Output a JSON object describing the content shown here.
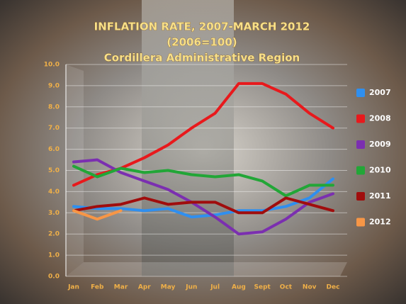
{
  "chart_data": {
    "type": "line",
    "title": "INFLATION RATE, 2007-MARCH 2012",
    "subtitle": [
      "(2006=100)",
      "Cordillera Administrative Region"
    ],
    "categories": [
      "Jan",
      "Feb",
      "Mar",
      "Apr",
      "May",
      "Jun",
      "Jul",
      "Aug",
      "Sept",
      "Oct",
      "Nov",
      "Dec"
    ],
    "series": [
      {
        "name": "2007",
        "color": "#2f8fef",
        "values": [
          3.3,
          3.2,
          3.2,
          3.1,
          3.2,
          2.8,
          2.9,
          3.1,
          3.1,
          3.3,
          3.7,
          4.6
        ]
      },
      {
        "name": "2008",
        "color": "#e8191c",
        "values": [
          4.3,
          4.8,
          5.1,
          5.6,
          6.2,
          7.0,
          7.7,
          9.1,
          9.1,
          8.6,
          7.7,
          7.0
        ]
      },
      {
        "name": "2009",
        "color": "#7b2fb0",
        "values": [
          5.4,
          5.5,
          4.9,
          4.5,
          4.1,
          3.5,
          2.8,
          2.0,
          2.1,
          2.7,
          3.5,
          3.9
        ]
      },
      {
        "name": "2010",
        "color": "#22a637",
        "values": [
          5.2,
          4.7,
          5.1,
          4.9,
          5.0,
          4.8,
          4.7,
          4.8,
          4.5,
          3.8,
          4.3,
          4.3
        ]
      },
      {
        "name": "2011",
        "color": "#a00d0d",
        "values": [
          3.1,
          3.3,
          3.4,
          3.7,
          3.4,
          3.5,
          3.5,
          3.0,
          3.0,
          3.7,
          3.4,
          3.1
        ]
      },
      {
        "name": "2012",
        "color": "#f79646",
        "values": [
          3.1,
          2.7,
          3.1,
          null,
          null,
          null,
          null,
          null,
          null,
          null,
          null,
          null
        ]
      }
    ],
    "ylim": [
      0,
      10
    ],
    "yticks": [
      {
        "value": 0,
        "label": "0.0"
      },
      {
        "value": 1,
        "label": "1.0"
      },
      {
        "value": 2,
        "label": "2.0"
      },
      {
        "value": 3,
        "label": "3.0"
      },
      {
        "value": 4,
        "label": "4.0"
      },
      {
        "value": 5,
        "label": "5.0"
      },
      {
        "value": 6,
        "label": "6.0"
      },
      {
        "value": 7,
        "label": "7.0"
      },
      {
        "value": 8,
        "label": "8.0"
      },
      {
        "value": 9,
        "label": "9.0"
      },
      {
        "value": 10,
        "label": "10.0"
      }
    ],
    "grid": true,
    "legend": "right"
  }
}
